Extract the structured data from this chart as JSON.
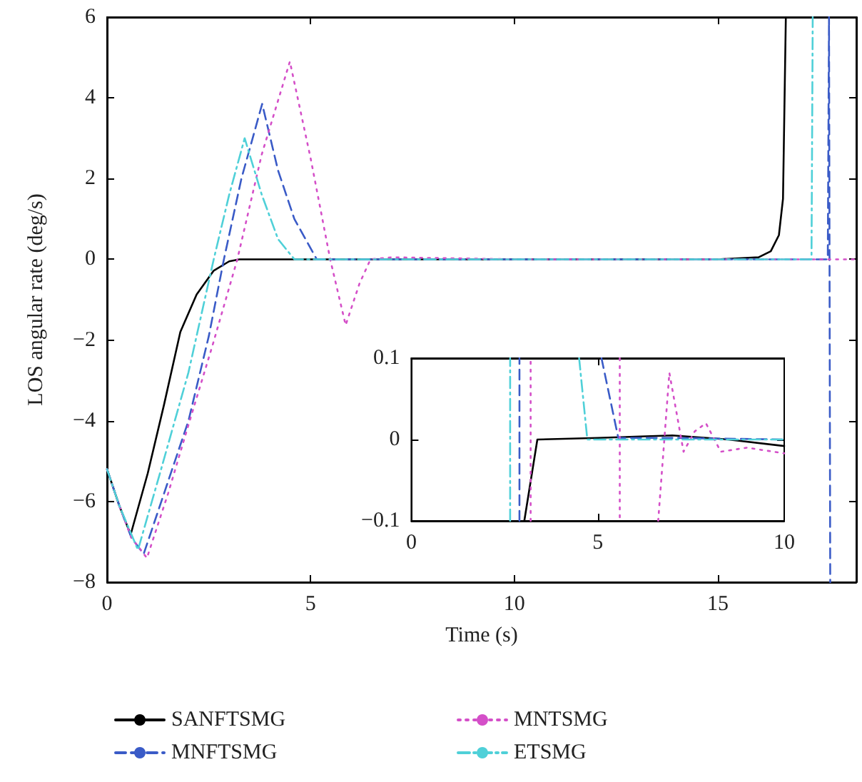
{
  "chart_data": [
    {
      "type": "line",
      "xlabel": "Time (s)",
      "ylabel": "LOS angular rate (deg/s)",
      "xlim": [
        0,
        18.4
      ],
      "xticks": [
        0,
        5,
        10,
        15
      ],
      "ylim": [
        -8,
        6
      ],
      "yticks": [
        -8,
        -6,
        -4,
        -2,
        0,
        2,
        4,
        6
      ],
      "grid": false,
      "legend": "bottom",
      "marker": "none",
      "series": [
        {
          "name": "SANFTSMG",
          "color": "#000000",
          "line_style": "solid",
          "x": [
            0,
            0.3,
            0.58,
            1.0,
            1.4,
            1.8,
            2.2,
            2.62,
            3.0,
            3.25,
            5,
            10,
            15,
            16,
            16.3,
            16.5,
            16.6,
            16.67
          ],
          "values": [
            -5.2,
            -6.1,
            -6.82,
            -5.3,
            -3.6,
            -1.8,
            -0.87,
            -0.28,
            -0.05,
            0,
            0,
            0,
            0,
            0.05,
            0.2,
            0.6,
            1.5,
            6
          ]
        },
        {
          "name": "MNFTSMG",
          "color": "#3a5bc7",
          "line_style": "dashed",
          "x": [
            0,
            0.3,
            0.6,
            0.9,
            1.5,
            2.0,
            2.5,
            2.87,
            3.3,
            3.81,
            4.2,
            4.6,
            5.15,
            10,
            15,
            17.7,
            17.73,
            17.76
          ],
          "values": [
            -5.2,
            -6.1,
            -6.9,
            -7.3,
            -5.5,
            -4.0,
            -1.9,
            0,
            2.0,
            3.85,
            2.2,
            1.0,
            0,
            0,
            0,
            0,
            6,
            -8
          ]
        },
        {
          "name": "MNTSMG",
          "color": "#d44fc8",
          "line_style": "dotted",
          "x": [
            0,
            0.3,
            0.6,
            0.98,
            1.5,
            2.0,
            2.6,
            3.2,
            3.8,
            4.49,
            5.0,
            5.48,
            5.86,
            6.2,
            6.47,
            7.0,
            10,
            15,
            18.4
          ],
          "values": [
            -5.2,
            -6.1,
            -6.9,
            -7.4,
            -5.8,
            -4.1,
            -2.1,
            0,
            2.6,
            4.9,
            2.5,
            0,
            -1.63,
            -0.6,
            0,
            0.05,
            0,
            0,
            0
          ]
        },
        {
          "name": "ETSMG",
          "color": "#4fd0d8",
          "line_style": "dashdot",
          "x": [
            0,
            0.3,
            0.76,
            1.3,
            2.0,
            2.62,
            3.0,
            3.38,
            3.8,
            4.2,
            4.6,
            10,
            15,
            17.3,
            17.33
          ],
          "values": [
            -5.2,
            -6.1,
            -7.2,
            -5.3,
            -2.8,
            0,
            1.6,
            3.0,
            1.6,
            0.5,
            0,
            0,
            0,
            0,
            6
          ]
        }
      ]
    },
    {
      "type": "line",
      "xlim": [
        0,
        10
      ],
      "xticks": [
        0,
        5,
        10
      ],
      "ylim": [
        -0.1,
        0.1
      ],
      "yticks": [
        -0.1,
        0,
        0.1
      ],
      "grid": false,
      "marker": "none",
      "series": [
        {
          "color": "#000000",
          "line_style": "solid",
          "x": [
            3.03,
            3.38,
            5,
            7,
            8.5,
            10
          ],
          "values": [
            -0.1,
            0,
            0.002,
            0.005,
            0,
            -0.008
          ]
        },
        {
          "color": "#3a5bc7",
          "line_style": "dashed",
          "x": [
            2.9,
            2.9,
            4,
            5.1,
            5.55,
            7,
            10
          ],
          "values": [
            -0.1,
            0.1,
            null,
            0.1,
            0.002,
            0.002,
            0
          ]
        },
        {
          "color": "#d44fc8",
          "line_style": "dotted",
          "x": [
            3.2,
            3.2,
            4.4,
            5.59,
            5.59,
            6.1,
            6.62,
            6.92,
            7.3,
            7.6,
            7.9,
            8.3,
            9,
            10
          ],
          "values": [
            -0.1,
            0.1,
            null,
            0.1,
            -0.1,
            null,
            -0.1,
            0.082,
            -0.015,
            0.01,
            0.02,
            -0.015,
            -0.01,
            -0.017
          ]
        },
        {
          "color": "#4fd0d8",
          "line_style": "dashdot",
          "x": [
            2.65,
            2.65,
            3.5,
            4.5,
            4.72,
            7,
            10
          ],
          "values": [
            -0.1,
            0.1,
            null,
            0.1,
            0,
            0,
            0
          ]
        }
      ]
    }
  ]
}
